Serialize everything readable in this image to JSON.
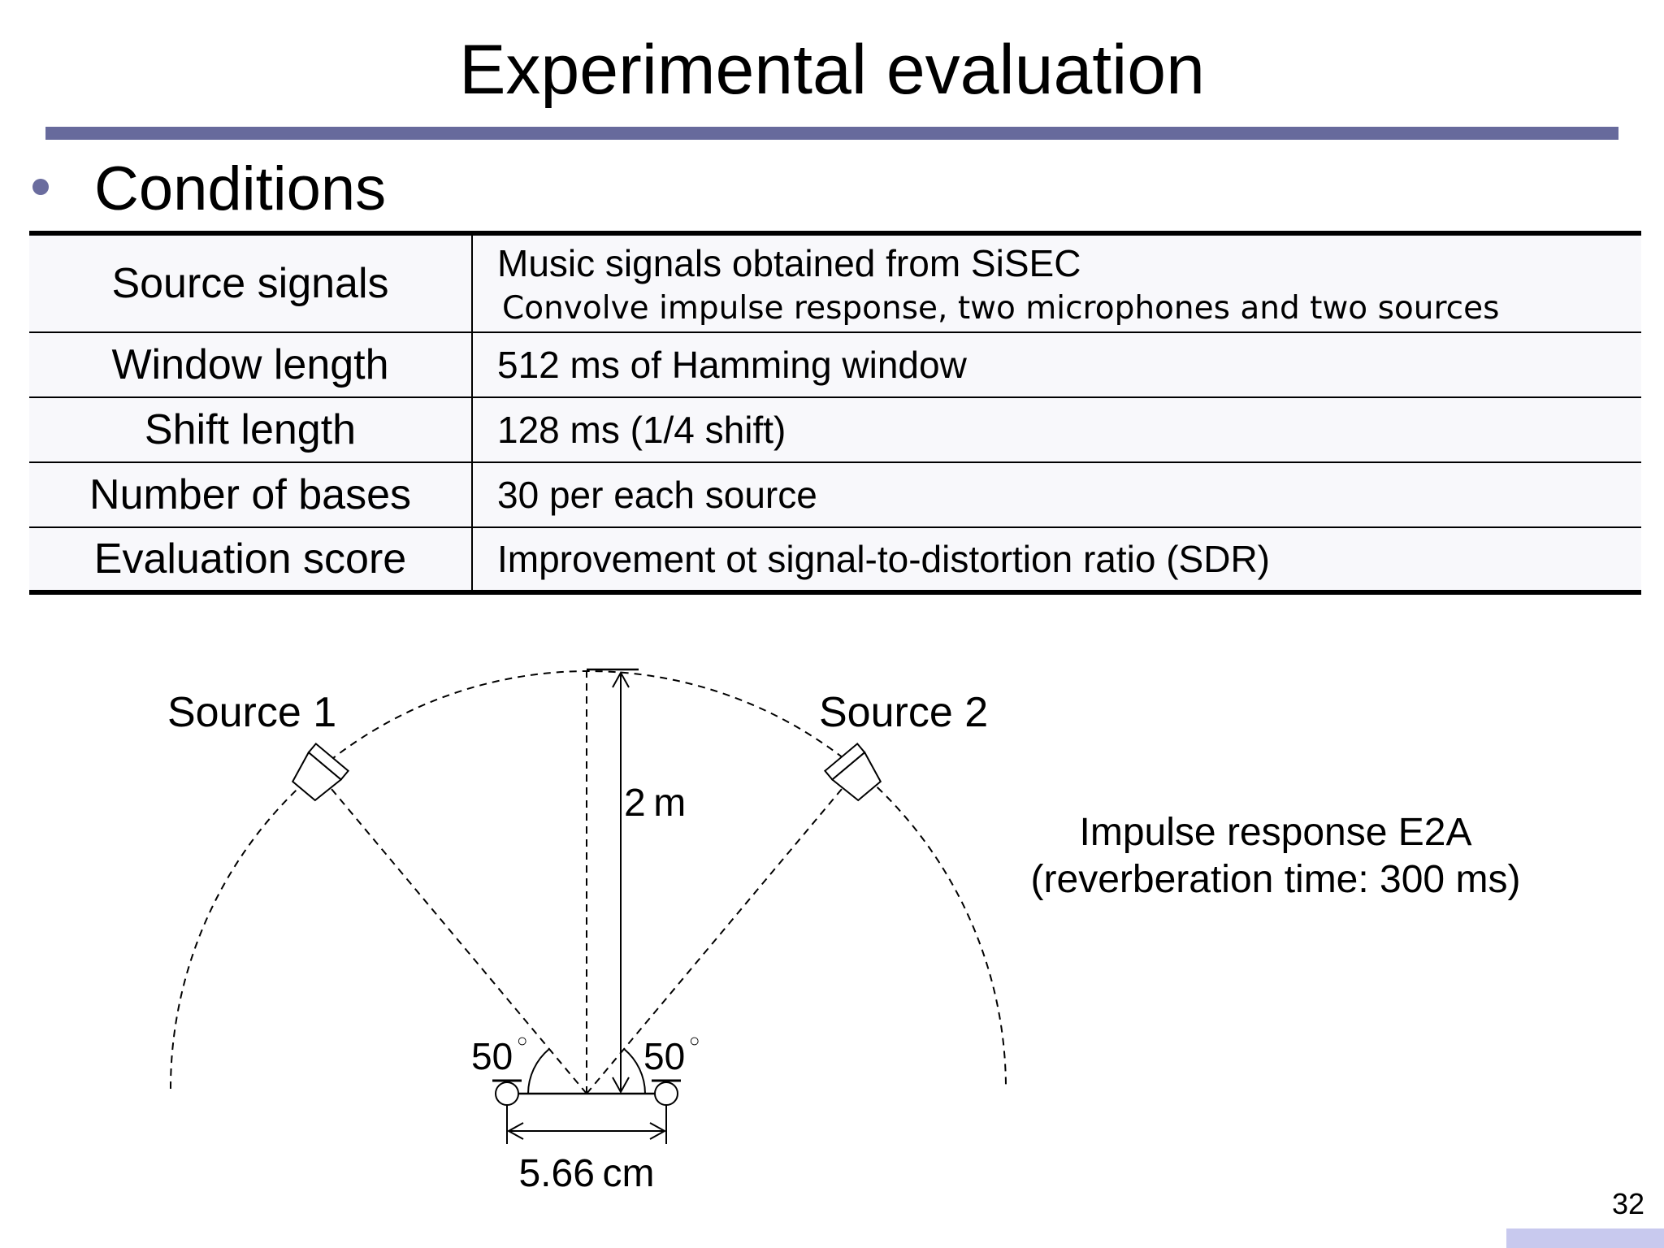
{
  "slide": {
    "title": "Experimental evaluation",
    "heading": "Conditions",
    "page_number": "32"
  },
  "conditions": [
    {
      "label": "Source signals",
      "value": "Music signals obtained from SiSEC",
      "sub": "Convolve impulse response, two microphones and two sources"
    },
    {
      "label": "Window length",
      "value": "512 ms of Hamming window"
    },
    {
      "label": "Shift length",
      "value": "128 ms (1/4 shift)"
    },
    {
      "label": "Number of bases",
      "value": "30 per each source"
    },
    {
      "label": "Evaluation score",
      "value": "Improvement ot signal-to-distortion ratio (SDR)"
    }
  ],
  "diagram": {
    "source1_label": "Source 1",
    "source2_label": "Source 2",
    "distance_label": "2 m",
    "angle_left": "50",
    "angle_right": "50",
    "degree_symbol": "○",
    "mic_spacing_label": "5.66 cm",
    "caption_line1": "Impulse response E2A",
    "caption_line2": "(reverberation time: 300 ms)"
  }
}
